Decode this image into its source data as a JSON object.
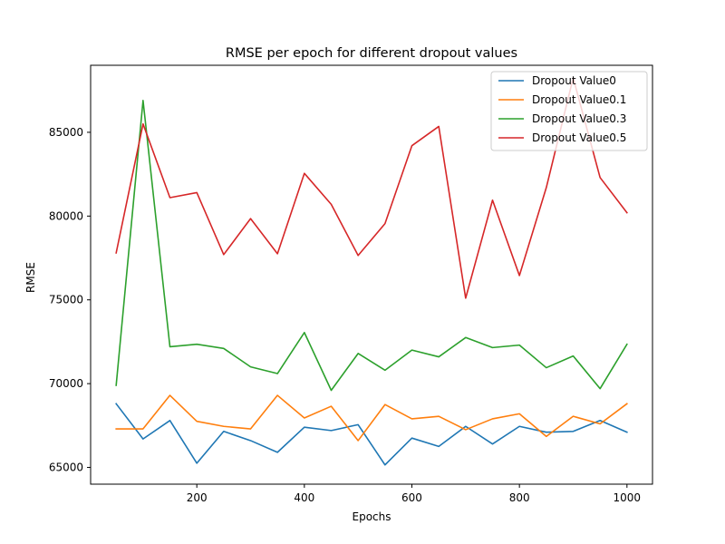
{
  "chart_data": {
    "type": "line",
    "title": "RMSE per epoch for different dropout values",
    "xlabel": "Epochs",
    "ylabel": "RMSE",
    "x": [
      50,
      100,
      150,
      200,
      250,
      300,
      350,
      400,
      450,
      500,
      550,
      600,
      650,
      700,
      750,
      800,
      850,
      900,
      950,
      1000
    ],
    "xlim": [
      2.5,
      1047.5
    ],
    "ylim": [
      64000,
      89000
    ],
    "xticks": [
      200,
      400,
      600,
      800,
      1000
    ],
    "yticks": [
      65000,
      70000,
      75000,
      80000,
      85000
    ],
    "xtick_labels": [
      "200",
      "400",
      "600",
      "800",
      "1000"
    ],
    "ytick_labels": [
      "65000",
      "70000",
      "75000",
      "80000",
      "85000"
    ],
    "grid": false,
    "legend_position": "top-right",
    "series": [
      {
        "name": "Dropout Value0",
        "color": "#1f77b4",
        "values": [
          68800,
          66700,
          67800,
          65250,
          67150,
          66600,
          65900,
          67400,
          67200,
          67550,
          65150,
          66750,
          66250,
          67450,
          66400,
          67450,
          67100,
          67150,
          67800,
          67100
        ]
      },
      {
        "name": "Dropout Value0.1",
        "color": "#ff7f0e",
        "values": [
          67300,
          67300,
          69300,
          67750,
          67450,
          67300,
          69300,
          67950,
          68650,
          66600,
          68750,
          67900,
          68050,
          67250,
          67900,
          68200,
          66850,
          68050,
          67600,
          68800
        ]
      },
      {
        "name": "Dropout Value0.3",
        "color": "#2ca02c",
        "values": [
          69900,
          86900,
          72200,
          72350,
          72100,
          71000,
          70600,
          73050,
          69600,
          71800,
          70800,
          72000,
          71600,
          72750,
          72150,
          72300,
          70950,
          71650,
          69700,
          72350
        ]
      },
      {
        "name": "Dropout Value0.5",
        "color": "#d62728",
        "values": [
          77800,
          85500,
          81100,
          81400,
          77700,
          79850,
          77750,
          82550,
          80700,
          77650,
          79550,
          84200,
          85350,
          75100,
          80950,
          76450,
          81700,
          88250,
          82300,
          80200
        ]
      }
    ]
  }
}
